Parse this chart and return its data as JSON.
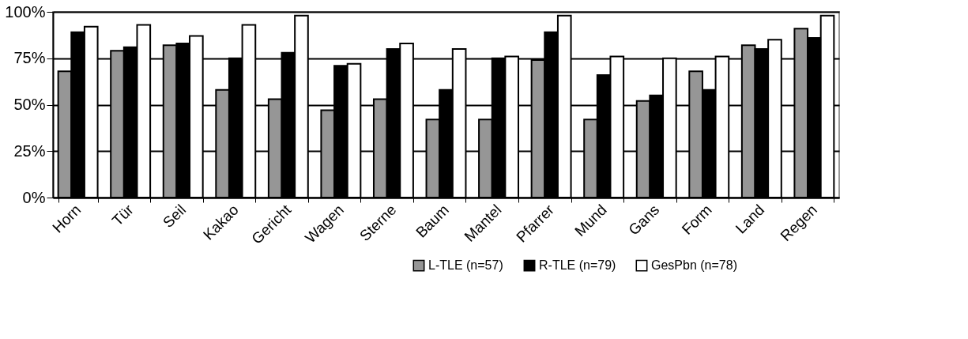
{
  "chart_data": {
    "type": "bar",
    "categories": [
      "Horn",
      "Tür",
      "Seil",
      "Kakao",
      "Gericht",
      "Wagen",
      "Sterne",
      "Baum",
      "Mantel",
      "Pfarrer",
      "Mund",
      "Gans",
      "Form",
      "Land",
      "Regen"
    ],
    "series": [
      {
        "name": "L-TLE  (n=57)",
        "color": "#969696",
        "values": [
          68,
          79,
          82,
          58,
          53,
          47,
          53,
          42,
          42,
          74,
          42,
          52,
          68,
          82,
          91
        ]
      },
      {
        "name": "R-TLE  (n=79)",
        "color": "#000000",
        "values": [
          89,
          81,
          83,
          75,
          78,
          71,
          80,
          58,
          75,
          89,
          66,
          55,
          58,
          80,
          86
        ]
      },
      {
        "name": "GesPbn  (n=78)",
        "color": "#ffffff",
        "values": [
          92,
          93,
          87,
          93,
          98,
          72,
          83,
          80,
          76,
          98,
          76,
          75,
          76,
          85,
          98
        ]
      }
    ],
    "ylim": [
      0,
      100
    ],
    "yticks": [
      {
        "value": 0,
        "label": "0%"
      },
      {
        "value": 25,
        "label": "25%"
      },
      {
        "value": 50,
        "label": "50%"
      },
      {
        "value": 75,
        "label": "75%"
      },
      {
        "value": 100,
        "label": "100%"
      }
    ],
    "grid": "y",
    "legend": "bottom right"
  }
}
